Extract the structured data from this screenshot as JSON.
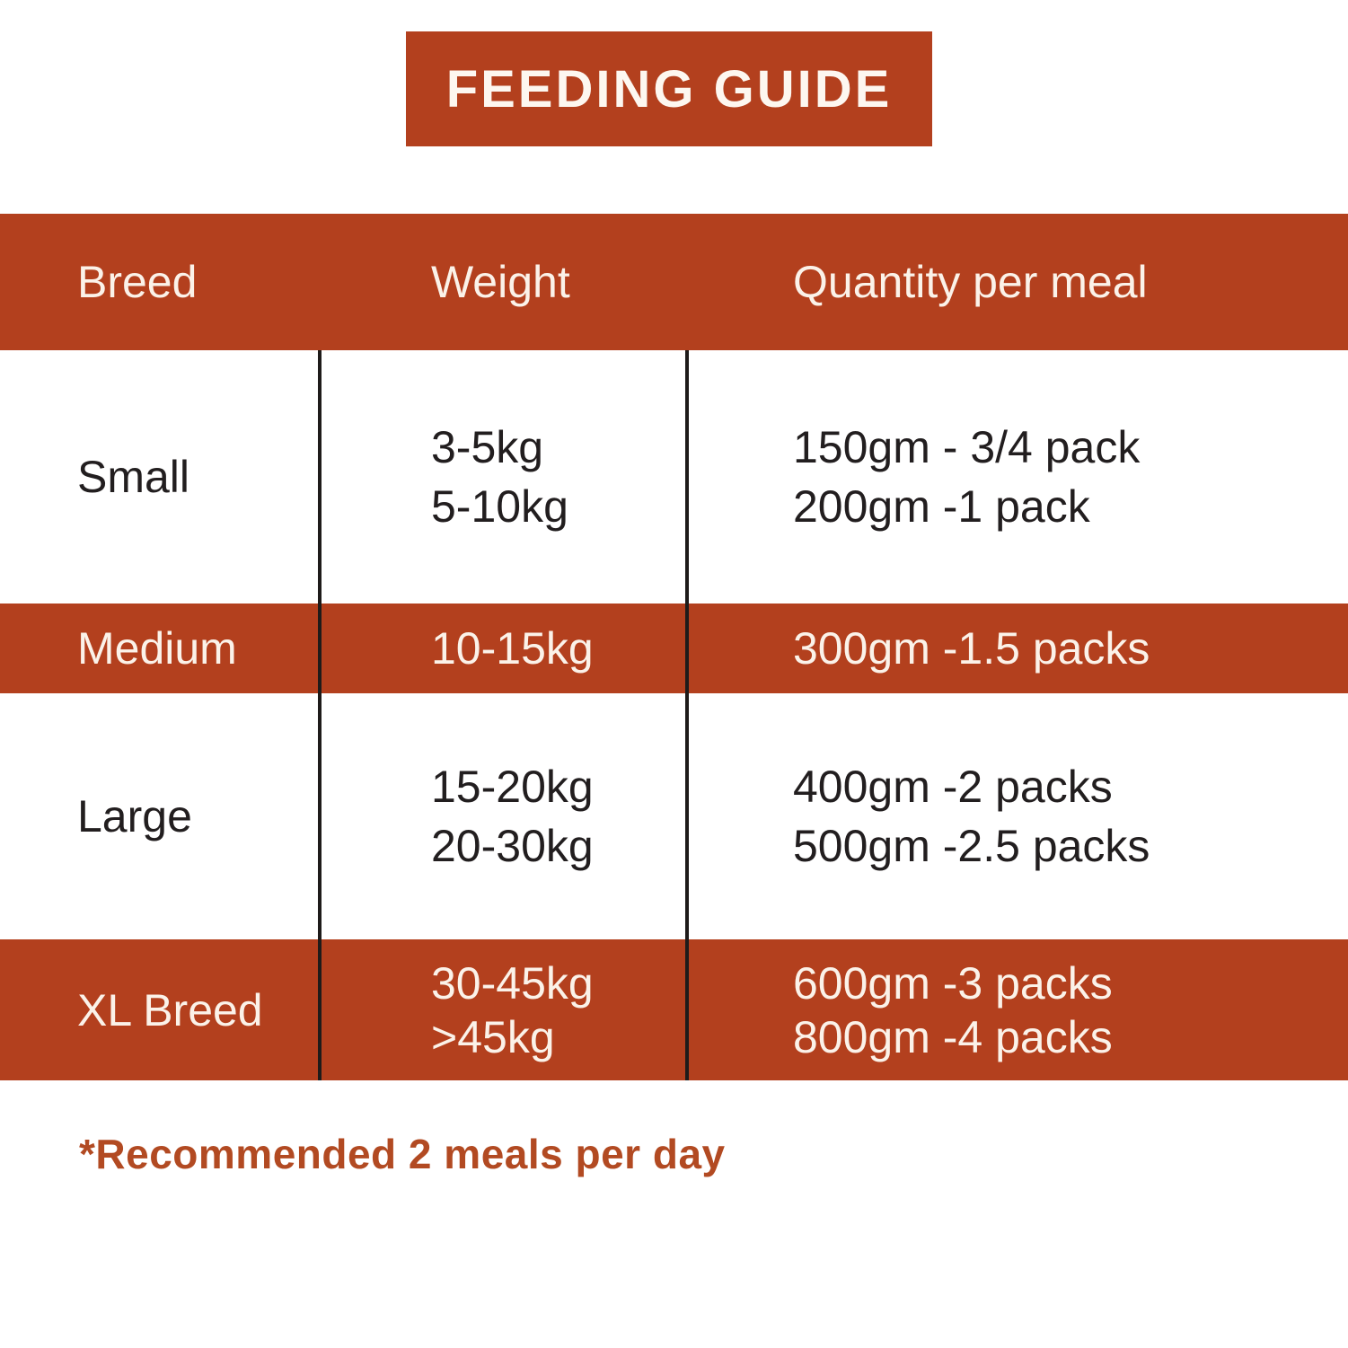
{
  "title": "FEEDING GUIDE",
  "colors": {
    "accent": "#b3401e",
    "dark_text": "#221e1f",
    "light_text": "#fbf2e9",
    "divider_dark": "#1e1b1a",
    "divider_light": "#f7ead9",
    "footnote_text": "#b24a22"
  },
  "table": {
    "headers": [
      "Breed",
      "Weight",
      "Quantity per meal"
    ],
    "rows": [
      {
        "breed": "Small",
        "weight_lines": [
          "3-5kg",
          "5-10kg"
        ],
        "quantity_lines": [
          "150gm - 3/4 pack",
          "200gm -1 pack"
        ],
        "highlighted": false
      },
      {
        "breed": "Medium",
        "weight_lines": [
          "10-15kg"
        ],
        "quantity_lines": [
          "300gm -1.5 packs"
        ],
        "highlighted": true
      },
      {
        "breed": "Large",
        "weight_lines": [
          "15-20kg",
          "20-30kg"
        ],
        "quantity_lines": [
          "400gm -2 packs",
          "500gm -2.5 packs"
        ],
        "highlighted": false
      },
      {
        "breed": "XL Breed",
        "weight_lines": [
          "30-45kg",
          ">45kg"
        ],
        "quantity_lines": [
          "600gm -3 packs",
          "800gm -4 packs"
        ],
        "highlighted": true
      }
    ]
  },
  "footnote": "*Recommended 2 meals per day"
}
